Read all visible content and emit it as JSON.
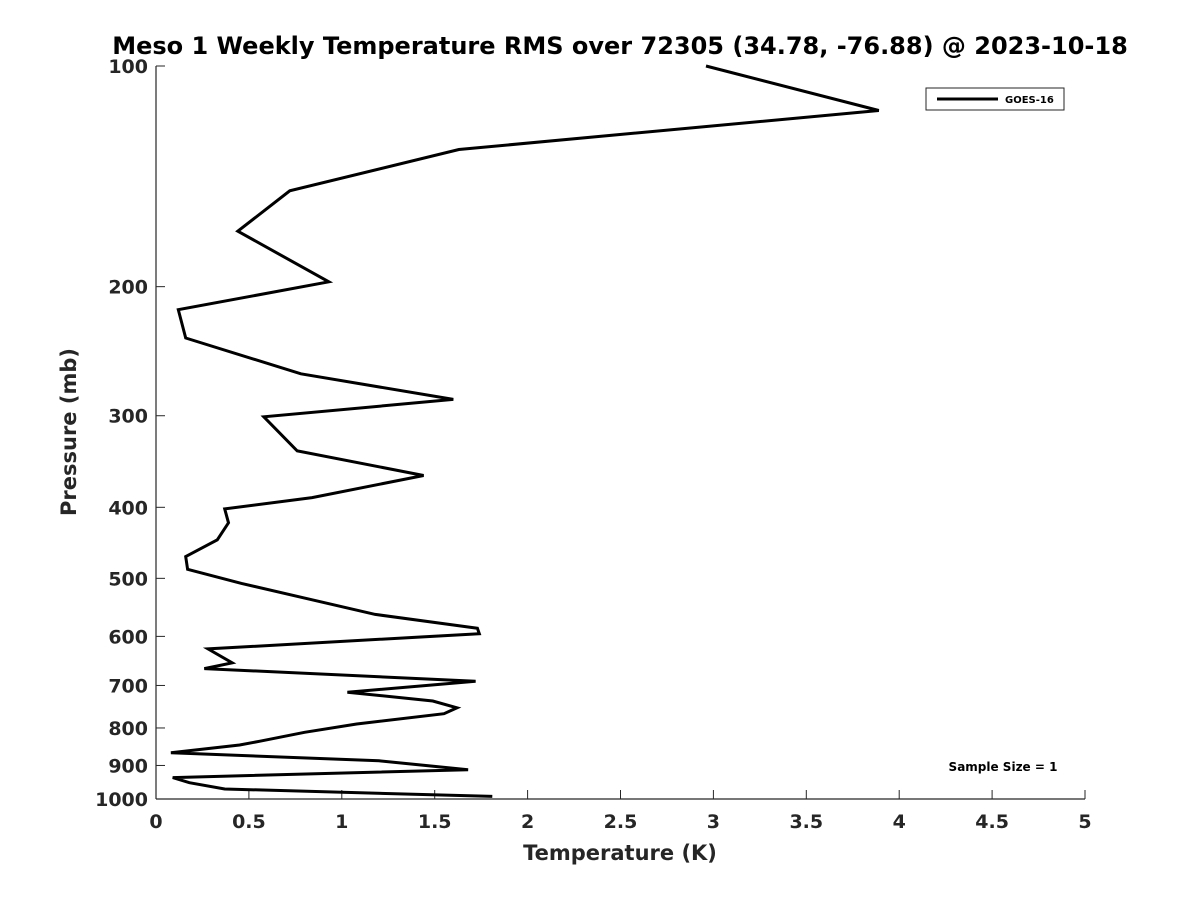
{
  "chart_data": {
    "type": "line",
    "title": "Meso 1 Weekly Temperature RMS over 72305 (34.78, -76.88) @ 2023-10-18",
    "xlabel": "Temperature (K)",
    "ylabel": "Pressure (mb)",
    "xlim": [
      0,
      5
    ],
    "ylim": [
      100,
      1000
    ],
    "y_scale": "log",
    "y_reversed": true,
    "grid": false,
    "legend_position": "top-right",
    "x_ticks": [
      "0",
      "0.5",
      "1",
      "1.5",
      "2",
      "2.5",
      "3",
      "3.5",
      "4",
      "4.5",
      "5"
    ],
    "y_ticks": [
      "100",
      "200",
      "300",
      "400",
      "500",
      "600",
      "700",
      "800",
      "900",
      "1000"
    ],
    "annotation": "Sample Size = 1",
    "series": [
      {
        "name": "GOES-16",
        "color": "#000000",
        "x": [
          2.96,
          3.89,
          1.63,
          0.72,
          0.44,
          0.93,
          0.12,
          0.16,
          0.78,
          1.6,
          0.58,
          0.76,
          1.44,
          0.84,
          0.37,
          0.39,
          0.33,
          0.16,
          0.17,
          0.46,
          0.8,
          1.18,
          1.73,
          1.74,
          0.28,
          0.41,
          0.26,
          1.72,
          1.03,
          1.49,
          1.62,
          1.55,
          1.08,
          0.8,
          0.56,
          0.45,
          0.08,
          1.2,
          1.68,
          0.09,
          0.18,
          0.37,
          1.81
        ],
        "y": [
          100,
          115,
          130,
          148,
          168,
          197,
          215,
          235,
          263,
          285,
          301,
          335,
          362,
          388,
          402,
          420,
          443,
          467,
          486,
          508,
          532,
          560,
          585,
          595,
          624,
          652,
          664,
          691,
          715,
          735,
          751,
          765,
          790,
          811,
          834,
          844,
          865,
          887,
          912,
          935,
          950,
          969,
          992
        ]
      }
    ]
  }
}
